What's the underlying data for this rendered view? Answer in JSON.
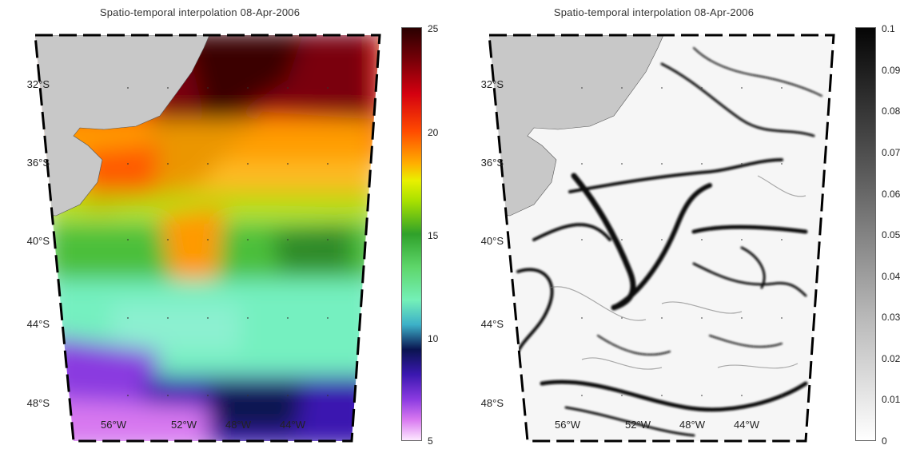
{
  "left_panel": {
    "title": "Spatio-temporal interpolation 08-Apr-2006",
    "colorbar_ticks": [
      "25",
      "20",
      "15",
      "10",
      "5"
    ],
    "colorbar_range": [
      5,
      25
    ]
  },
  "right_panel": {
    "title": "Spatio-temporal interpolation 08-Apr-2006",
    "colorbar_ticks": [
      "0.1",
      "0.09",
      "0.08",
      "0.07",
      "0.06",
      "0.05",
      "0.04",
      "0.03",
      "0.02",
      "0.01",
      "0"
    ],
    "colorbar_range": [
      0,
      0.1
    ]
  },
  "lat_labels": [
    "32°S",
    "36°S",
    "40°S",
    "44°S",
    "48°S"
  ],
  "lon_labels": [
    "56°W",
    "52°W",
    "48°W",
    "44°W"
  ],
  "colors": {
    "land": "#c8c8c8",
    "frame": "#000000"
  }
}
